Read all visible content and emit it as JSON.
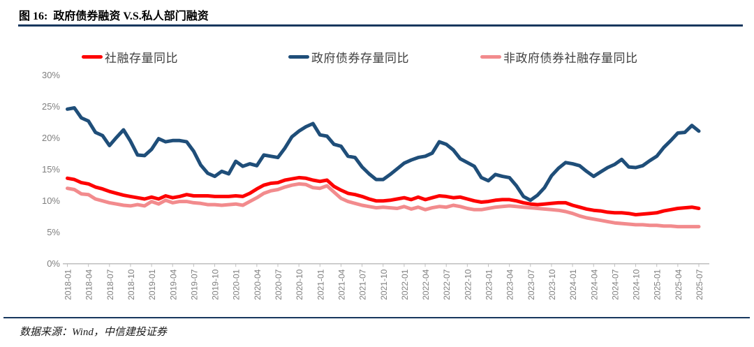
{
  "header": {
    "title": "图 16:  政府债券融资 V.S.私人部门融资"
  },
  "footer": {
    "source": "数据来源：Wind，中信建投证券"
  },
  "colors": {
    "rule_navy": "#17375E",
    "series_red": "#FE0000",
    "series_blue": "#1F4E79",
    "series_pink": "#F28B8D",
    "axis_line": "#BFBFBF",
    "tick_label": "#7F7F7F",
    "legend_text": "#404040"
  },
  "chart_data": {
    "type": "line",
    "title": "图 16:  政府债券融资 V.S.私人部门融资",
    "xlabel": "",
    "ylabel": "",
    "x_start": "2018-01",
    "x_end": "2025-07",
    "x_freq_months": 1,
    "ylim": [
      0,
      30
    ],
    "grid": false,
    "legend_position": "top",
    "y_tick_labels": [
      "0%",
      "5%",
      "10%",
      "15%",
      "20%",
      "25%",
      "30%"
    ],
    "y_tick_values": [
      0,
      5,
      10,
      15,
      20,
      25,
      30
    ],
    "x_tick_labels": [
      "2018-01",
      "2018-04",
      "2018-07",
      "2018-10",
      "2019-01",
      "2019-04",
      "2019-07",
      "2019-10",
      "2020-01",
      "2020-04",
      "2020-07",
      "2020-10",
      "2021-01",
      "2021-04",
      "2021-07",
      "2021-10",
      "2022-01",
      "2022-04",
      "2022-07",
      "2022-10",
      "2023-01",
      "2023-04",
      "2023-07",
      "2023-10",
      "2024-01",
      "2024-04",
      "2024-07",
      "2024-10",
      "2025-01",
      "2025-04",
      "2025-07"
    ],
    "series": [
      {
        "name": "社融存量同比",
        "color": "#FE0000",
        "stroke_width": 5,
        "values": [
          13.6,
          13.4,
          12.9,
          12.7,
          12.2,
          11.9,
          11.5,
          11.2,
          10.9,
          10.7,
          10.5,
          10.3,
          10.6,
          10.3,
          10.8,
          10.5,
          10.7,
          11.0,
          10.8,
          10.8,
          10.8,
          10.7,
          10.7,
          10.7,
          10.8,
          10.7,
          11.2,
          11.9,
          12.5,
          12.8,
          12.9,
          13.3,
          13.5,
          13.7,
          13.6,
          13.3,
          13.1,
          13.3,
          12.3,
          11.7,
          11.2,
          11.0,
          10.7,
          10.3,
          10.0,
          10.0,
          10.1,
          10.3,
          10.5,
          10.2,
          10.6,
          10.2,
          10.5,
          10.8,
          10.7,
          10.5,
          10.6,
          10.3,
          10.0,
          9.8,
          9.9,
          10.1,
          10.2,
          10.2,
          10.0,
          9.7,
          9.5,
          9.4,
          9.5,
          9.6,
          9.7,
          9.7,
          9.3,
          9.0,
          8.7,
          8.5,
          8.4,
          8.2,
          8.1,
          8.1,
          8.0,
          7.8,
          7.9,
          8.0,
          8.1,
          8.4,
          8.6,
          8.8,
          8.9,
          9.0,
          8.8
        ]
      },
      {
        "name": "政府债券存量同比",
        "color": "#1F4E79",
        "stroke_width": 5,
        "values": [
          24.6,
          24.8,
          23.2,
          22.7,
          20.9,
          20.4,
          18.8,
          20.1,
          21.3,
          19.5,
          17.3,
          17.2,
          18.2,
          19.9,
          19.4,
          19.6,
          19.6,
          19.4,
          17.9,
          15.7,
          14.4,
          13.9,
          14.7,
          14.3,
          16.3,
          15.5,
          15.9,
          15.6,
          17.3,
          17.1,
          16.9,
          18.4,
          20.2,
          21.1,
          21.8,
          22.3,
          20.5,
          20.3,
          19.0,
          18.7,
          17.1,
          16.9,
          15.4,
          14.3,
          13.4,
          13.4,
          14.2,
          15.1,
          16.0,
          16.5,
          16.9,
          17.1,
          17.6,
          19.4,
          19.0,
          18.1,
          16.7,
          16.1,
          15.5,
          13.7,
          13.2,
          14.2,
          13.9,
          13.7,
          12.4,
          10.7,
          10.1,
          10.9,
          12.1,
          14.0,
          15.2,
          16.1,
          15.9,
          15.6,
          14.7,
          13.9,
          14.6,
          15.3,
          15.8,
          16.6,
          15.4,
          15.3,
          15.6,
          16.4,
          17.1,
          18.5,
          19.6,
          20.8,
          20.9,
          22.0,
          21.1
        ]
      },
      {
        "name": "非政府债券社融存量同比",
        "color": "#F28B8D",
        "stroke_width": 5,
        "values": [
          12.0,
          11.8,
          11.1,
          11.0,
          10.3,
          10.0,
          9.7,
          9.5,
          9.3,
          9.2,
          9.4,
          9.2,
          9.9,
          9.5,
          10.1,
          9.7,
          9.9,
          9.9,
          9.7,
          9.6,
          9.4,
          9.4,
          9.3,
          9.4,
          9.5,
          9.3,
          9.9,
          10.5,
          11.2,
          11.6,
          11.8,
          12.2,
          12.5,
          12.7,
          12.6,
          12.1,
          12.0,
          12.4,
          11.4,
          10.4,
          9.9,
          9.6,
          9.3,
          9.1,
          8.9,
          9.0,
          8.9,
          8.8,
          9.1,
          8.7,
          9.0,
          8.6,
          8.9,
          9.1,
          9.0,
          9.3,
          9.1,
          8.8,
          8.6,
          8.6,
          8.8,
          9.0,
          9.1,
          9.2,
          9.1,
          9.0,
          8.9,
          8.8,
          8.7,
          8.6,
          8.5,
          8.3,
          8.0,
          7.6,
          7.3,
          7.1,
          6.9,
          6.7,
          6.5,
          6.4,
          6.3,
          6.2,
          6.2,
          6.1,
          6.1,
          6.0,
          6.0,
          5.9,
          5.9,
          5.9,
          5.9
        ]
      }
    ],
    "legend": [
      "社融存量同比",
      "政府债券存量同比",
      "非政府债券社融存量同比"
    ]
  }
}
